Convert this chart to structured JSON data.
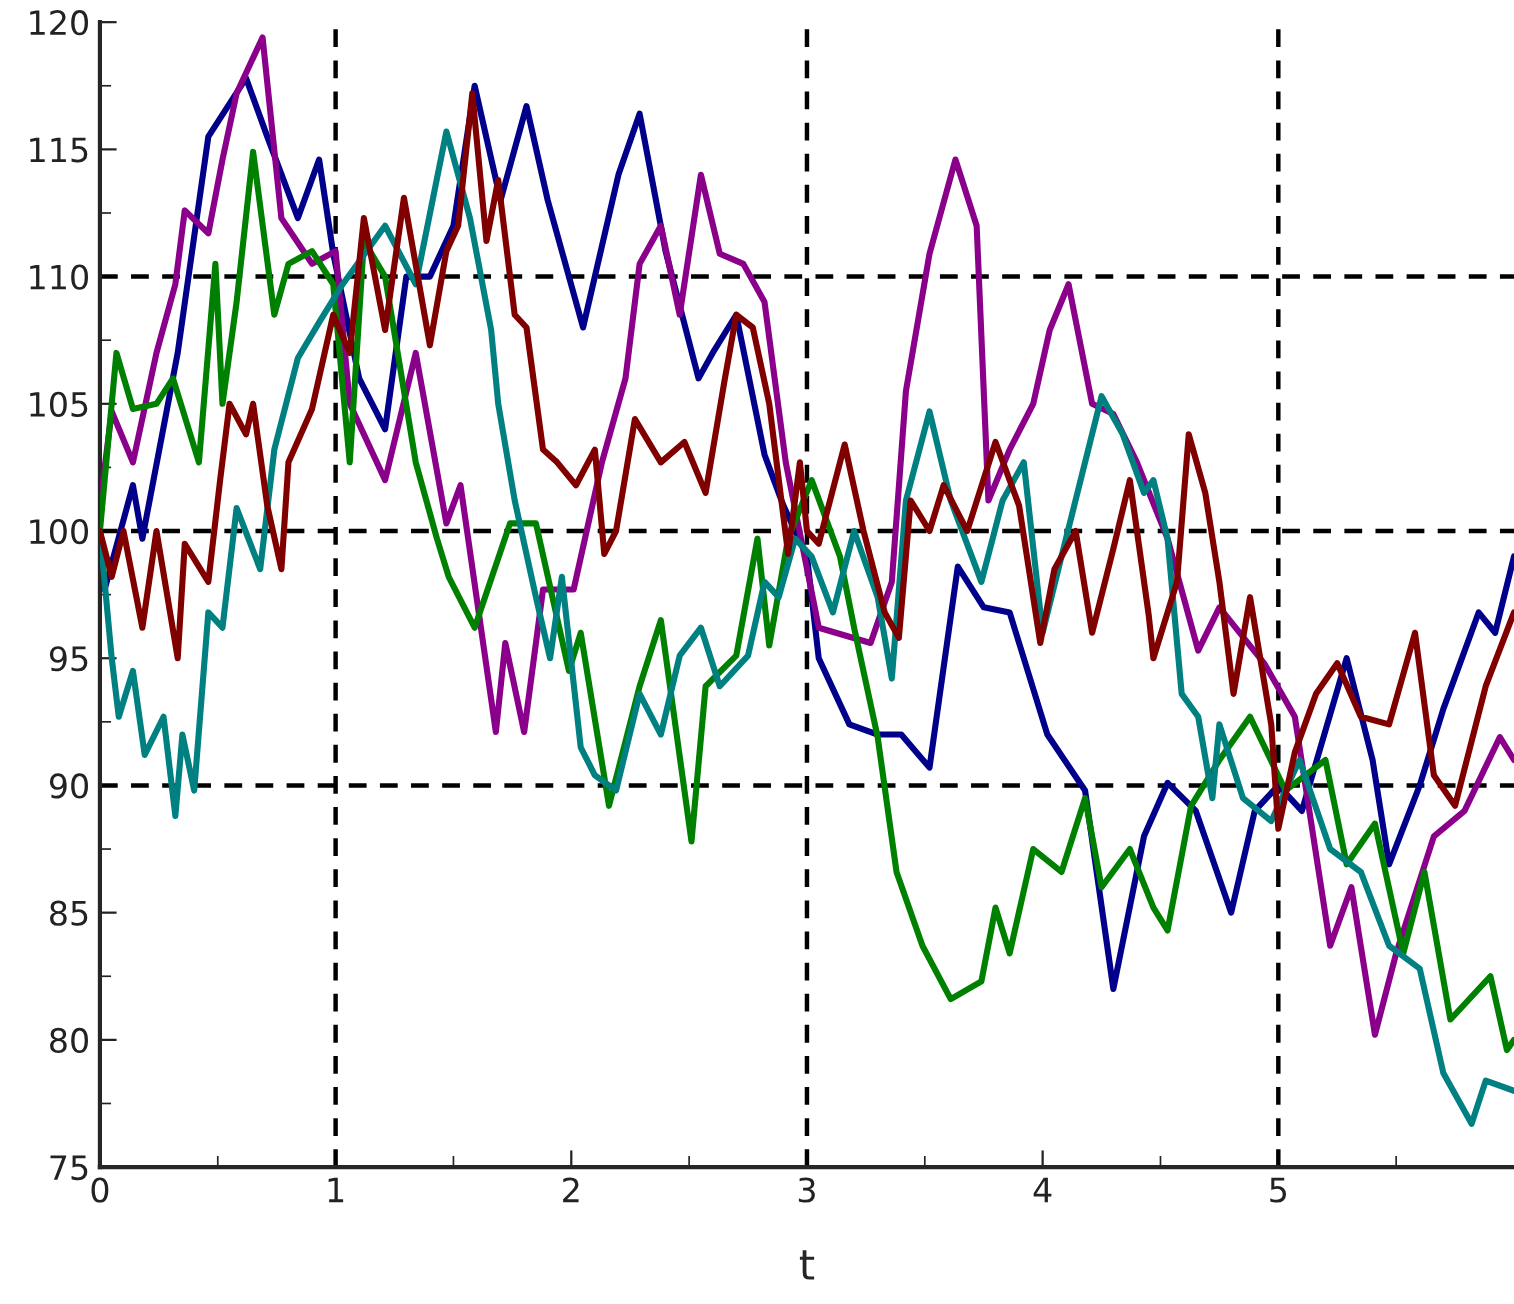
{
  "chart_data": {
    "type": "line",
    "xlabel": "t",
    "xlim": [
      0,
      6
    ],
    "ylim": [
      75,
      120
    ],
    "xticks": [
      0,
      1,
      2,
      3,
      4,
      5
    ],
    "yticks": [
      75,
      80,
      85,
      90,
      95,
      100,
      105,
      110,
      115,
      120
    ],
    "grid": false,
    "legend": false,
    "line_style": "solid",
    "marker": "none",
    "ref_lines": [
      {
        "axis": "x",
        "value": 1,
        "color": "#000000",
        "line_style": "dashed"
      },
      {
        "axis": "x",
        "value": 3,
        "color": "#000000",
        "line_style": "dashed"
      },
      {
        "axis": "x",
        "value": 5,
        "color": "#000000",
        "line_style": "dashed"
      },
      {
        "axis": "y",
        "value": 90,
        "color": "#000000",
        "line_style": "dashed"
      },
      {
        "axis": "y",
        "value": 100,
        "color": "#000000",
        "line_style": "dashed"
      },
      {
        "axis": "y",
        "value": 110,
        "color": "#000000",
        "line_style": "dashed"
      }
    ],
    "series": [
      {
        "color": "#00008b",
        "x": [
          0,
          0.02,
          0.14,
          0.18,
          0.33,
          0.46,
          0.62,
          0.71,
          0.84,
          0.93,
          0.99,
          1.1,
          1.21,
          1.3,
          1.4,
          1.5,
          1.59,
          1.7,
          1.81,
          1.9,
          2.05,
          2.2,
          2.29,
          2.4,
          2.54,
          2.6,
          2.7,
          2.82,
          2.9,
          3.0,
          3.05,
          3.18,
          3.3,
          3.4,
          3.52,
          3.64,
          3.75,
          3.86,
          4.02,
          4.18,
          4.3,
          4.43,
          4.53,
          4.65,
          4.8,
          4.9,
          5.0,
          5.1,
          5.29,
          5.4,
          5.47,
          5.6,
          5.7,
          5.85,
          5.92,
          6.0
        ],
        "values": [
          98,
          97.7,
          101.8,
          99.7,
          107,
          115.5,
          117.8,
          115.5,
          112.3,
          114.6,
          110.9,
          106,
          104,
          110,
          110,
          112,
          117.5,
          113,
          116.7,
          113,
          108,
          114,
          116.4,
          111,
          106,
          107,
          108.5,
          103,
          101,
          99,
          95,
          92.4,
          92,
          92,
          90.7,
          98.6,
          97,
          96.8,
          92,
          89.8,
          82,
          88,
          90.1,
          89,
          85,
          89,
          90,
          89,
          95,
          91,
          86.9,
          90,
          93,
          96.8,
          96,
          99
        ]
      },
      {
        "color": "#8b008b",
        "x": [
          0,
          0.05,
          0.14,
          0.24,
          0.32,
          0.36,
          0.46,
          0.52,
          0.58,
          0.69,
          0.77,
          0.9,
          1.0,
          1.06,
          1.21,
          1.34,
          1.47,
          1.53,
          1.68,
          1.72,
          1.8,
          1.88,
          2.01,
          2.13,
          2.23,
          2.29,
          2.38,
          2.46,
          2.55,
          2.63,
          2.73,
          2.82,
          2.91,
          3.05,
          3.27,
          3.36,
          3.42,
          3.52,
          3.63,
          3.72,
          3.77,
          3.86,
          3.96,
          4.03,
          4.11,
          4.21,
          4.3,
          4.4,
          4.53,
          4.66,
          4.75,
          4.94,
          5.07,
          5.22,
          5.31,
          5.41,
          5.5,
          5.66,
          5.79,
          5.94,
          6.0
        ],
        "values": [
          101,
          104.7,
          102.7,
          107,
          109.7,
          112.6,
          111.7,
          114.6,
          117.2,
          119.4,
          112.3,
          110.5,
          111,
          105,
          102,
          107,
          100.3,
          101.8,
          92.1,
          95.6,
          92.1,
          97.7,
          97.7,
          102.7,
          106,
          110.5,
          112,
          108.5,
          114,
          110.9,
          110.5,
          109,
          102.7,
          96.2,
          95.6,
          98,
          105.5,
          110.9,
          114.6,
          112,
          101.2,
          103.2,
          105,
          107.9,
          109.7,
          105,
          104.6,
          102.7,
          99.7,
          95.3,
          97,
          94.8,
          92.7,
          83.7,
          86,
          80.2,
          83.4,
          88,
          89,
          91.9,
          91
        ]
      },
      {
        "color": "#008000",
        "x": [
          0,
          0.07,
          0.14,
          0.24,
          0.31,
          0.42,
          0.49,
          0.52,
          0.58,
          0.65,
          0.74,
          0.8,
          0.9,
          0.99,
          1.06,
          1.12,
          1.21,
          1.34,
          1.43,
          1.48,
          1.59,
          1.74,
          1.85,
          1.99,
          2.04,
          2.16,
          2.29,
          2.38,
          2.51,
          2.57,
          2.7,
          2.79,
          2.84,
          2.92,
          3.02,
          3.14,
          3.2,
          3.3,
          3.38,
          3.49,
          3.61,
          3.74,
          3.8,
          3.86,
          3.96,
          4.08,
          4.18,
          4.25,
          4.37,
          4.47,
          4.53,
          4.63,
          4.75,
          4.88,
          5.03,
          5.2,
          5.29,
          5.41,
          5.53,
          5.62,
          5.73,
          5.9,
          5.97,
          6.0
        ],
        "values": [
          100,
          107,
          104.8,
          105,
          106,
          102.7,
          110.5,
          105,
          109,
          114.9,
          108.5,
          110.5,
          111,
          109.7,
          102.7,
          111.4,
          110,
          102.7,
          99.7,
          98.2,
          96.2,
          100.3,
          100.3,
          94.5,
          96,
          89.2,
          93.9,
          96.5,
          87.8,
          93.9,
          95.1,
          99.7,
          95.5,
          99.7,
          102,
          99,
          96.2,
          91.9,
          86.6,
          83.7,
          81.6,
          82.3,
          85.2,
          83.4,
          87.5,
          86.6,
          89.5,
          86,
          87.5,
          85.2,
          84.3,
          89.2,
          91,
          92.7,
          89.8,
          91,
          86.9,
          88.5,
          83.4,
          86.6,
          80.8,
          82.5,
          79.6,
          80
        ]
      },
      {
        "color": "#008080",
        "x": [
          0,
          0.05,
          0.08,
          0.14,
          0.19,
          0.27,
          0.32,
          0.35,
          0.4,
          0.46,
          0.52,
          0.58,
          0.68,
          0.74,
          0.84,
          0.93,
          1.03,
          1.21,
          1.34,
          1.47,
          1.57,
          1.66,
          1.69,
          1.76,
          1.85,
          1.91,
          1.96,
          2.04,
          2.1,
          2.19,
          2.29,
          2.38,
          2.46,
          2.55,
          2.63,
          2.75,
          2.82,
          2.88,
          2.95,
          3.02,
          3.11,
          3.2,
          3.3,
          3.36,
          3.42,
          3.52,
          3.61,
          3.74,
          3.83,
          3.92,
          4.0,
          4.08,
          4.18,
          4.25,
          4.34,
          4.43,
          4.47,
          4.53,
          4.59,
          4.66,
          4.72,
          4.75,
          4.85,
          4.97,
          5.09,
          5.22,
          5.35,
          5.47,
          5.6,
          5.7,
          5.82,
          5.88,
          6.0
        ],
        "values": [
          100,
          95,
          92.7,
          94.5,
          91.2,
          92.7,
          88.8,
          92,
          89.8,
          96.8,
          96.2,
          100.9,
          98.5,
          103.2,
          106.8,
          108.2,
          109.7,
          112,
          109.7,
          115.7,
          112.3,
          107.9,
          105,
          101.2,
          97.4,
          95,
          98.2,
          91.5,
          90.4,
          89.8,
          93.6,
          92,
          95.1,
          96.2,
          93.9,
          95.1,
          98,
          97.4,
          99.7,
          99,
          96.8,
          100,
          97.4,
          94.2,
          101.2,
          104.7,
          101.2,
          98,
          101.2,
          102.7,
          96,
          99,
          102.7,
          105.3,
          103.8,
          101.5,
          102,
          99.7,
          93.6,
          92.7,
          89.5,
          92.4,
          89.5,
          88.6,
          91,
          87.5,
          86.6,
          83.7,
          82.8,
          78.7,
          76.7,
          78.4,
          78
        ]
      },
      {
        "color": "#800000",
        "x": [
          0,
          0.05,
          0.1,
          0.18,
          0.24,
          0.33,
          0.36,
          0.46,
          0.51,
          0.55,
          0.62,
          0.65,
          0.71,
          0.77,
          0.8,
          0.9,
          0.99,
          1.06,
          1.12,
          1.21,
          1.29,
          1.4,
          1.47,
          1.52,
          1.58,
          1.64,
          1.69,
          1.76,
          1.81,
          1.88,
          1.94,
          2.02,
          2.1,
          2.14,
          2.19,
          2.27,
          2.38,
          2.48,
          2.57,
          2.65,
          2.7,
          2.77,
          2.84,
          2.92,
          2.97,
          3.0,
          3.05,
          3.16,
          3.24,
          3.33,
          3.39,
          3.44,
          3.52,
          3.58,
          3.68,
          3.8,
          3.9,
          3.99,
          4.05,
          4.14,
          4.21,
          4.3,
          4.37,
          4.45,
          4.47,
          4.57,
          4.62,
          4.69,
          4.75,
          4.81,
          4.88,
          4.97,
          5.0,
          5.07,
          5.16,
          5.25,
          5.35,
          5.47,
          5.58,
          5.66,
          5.75,
          5.88,
          6.0
        ],
        "values": [
          100,
          98.2,
          100,
          96.2,
          100,
          95,
          99.5,
          98,
          102,
          105,
          103.8,
          105,
          101,
          98.5,
          102.7,
          104.8,
          108.5,
          107,
          112.3,
          107.9,
          113.1,
          107.3,
          111,
          112,
          117.2,
          111.4,
          113.8,
          108.5,
          108,
          103.2,
          102.7,
          101.8,
          103.2,
          99.1,
          100,
          104.4,
          102.7,
          103.5,
          101.5,
          105.9,
          108.5,
          108,
          105,
          99.1,
          102.7,
          100,
          99.5,
          103.4,
          100,
          96.8,
          95.8,
          101.2,
          100,
          101.8,
          100,
          103.5,
          101,
          95.6,
          98.5,
          100,
          96,
          99.3,
          102,
          96.7,
          95,
          98,
          103.8,
          101.5,
          98,
          93.6,
          97.4,
          92.4,
          88.3,
          91.3,
          93.6,
          94.8,
          92.7,
          92.4,
          96,
          90.4,
          89.2,
          93.9,
          96.8
        ]
      }
    ]
  }
}
